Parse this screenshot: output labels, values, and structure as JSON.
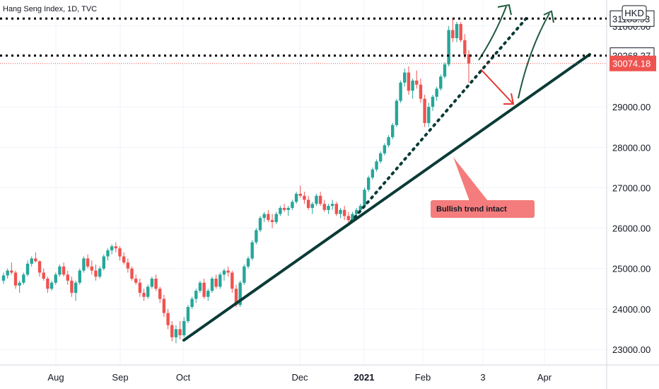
{
  "chart_data": {
    "type": "candlestick",
    "header": {
      "symbol": "Hang Seng Index, 1D, TVC"
    },
    "currency": "HKD",
    "y_axis": {
      "ticks": [
        "23000.00",
        "24000.00",
        "25000.00",
        "26000.00",
        "27000.00",
        "28000.00",
        "29000.00",
        "31000.00"
      ],
      "range": [
        22650,
        31300
      ]
    },
    "x_axis": {
      "labels": [
        {
          "text": "Aug",
          "bold": false
        },
        {
          "text": "Sep",
          "bold": false
        },
        {
          "text": "Oct",
          "bold": false
        },
        {
          "text": "Dec",
          "bold": false
        },
        {
          "text": "2021",
          "bold": true
        },
        {
          "text": "Feb",
          "bold": false
        },
        {
          "text": "3",
          "bold": false
        },
        {
          "text": "Apr",
          "bold": false
        }
      ]
    },
    "price_levels": [
      {
        "value": 31183.93,
        "label": "31183.93",
        "style": "dotted-black"
      },
      {
        "value": 30268.37,
        "label": "30268.37",
        "style": "dotted-black"
      },
      {
        "value": 30074.18,
        "label": "30074.18",
        "style": "current-price"
      }
    ],
    "annotation": {
      "text": "Bullish trend intact"
    },
    "candles": [
      [
        24700,
        24900,
        24620,
        24830
      ],
      [
        24830,
        25000,
        24750,
        24950
      ],
      [
        24950,
        25150,
        24850,
        24900
      ],
      [
        24900,
        24950,
        24500,
        24580
      ],
      [
        24580,
        24700,
        24400,
        24650
      ],
      [
        24650,
        24900,
        24600,
        24850
      ],
      [
        24850,
        25200,
        24800,
        25120
      ],
      [
        25120,
        25300,
        25050,
        25250
      ],
      [
        25250,
        25400,
        25150,
        25180
      ],
      [
        25180,
        25200,
        24800,
        24900
      ],
      [
        24900,
        25000,
        24700,
        24750
      ],
      [
        24750,
        24800,
        24400,
        24500
      ],
      [
        24500,
        24700,
        24450,
        24650
      ],
      [
        24650,
        24900,
        24600,
        24850
      ],
      [
        24850,
        25100,
        24800,
        25050
      ],
      [
        25050,
        25150,
        24800,
        24850
      ],
      [
        24850,
        24950,
        24600,
        24700
      ],
      [
        24700,
        24800,
        24300,
        24400
      ],
      [
        24400,
        24700,
        24200,
        24650
      ],
      [
        24650,
        25000,
        24600,
        24950
      ],
      [
        24950,
        25300,
        24900,
        25250
      ],
      [
        25250,
        25350,
        25000,
        25050
      ],
      [
        25050,
        25200,
        24850,
        24950
      ],
      [
        24950,
        25100,
        24700,
        24800
      ],
      [
        24800,
        25050,
        24750,
        25000
      ],
      [
        25000,
        25350,
        24950,
        25300
      ],
      [
        25300,
        25500,
        25200,
        25450
      ],
      [
        25450,
        25600,
        25350,
        25550
      ],
      [
        25550,
        25650,
        25400,
        25500
      ],
      [
        25500,
        25550,
        25200,
        25300
      ],
      [
        25300,
        25400,
        25100,
        25150
      ],
      [
        25150,
        25250,
        24900,
        25000
      ],
      [
        25000,
        25050,
        24700,
        24750
      ],
      [
        24750,
        24850,
        24600,
        24650
      ],
      [
        24650,
        24750,
        24300,
        24400
      ],
      [
        24400,
        24500,
        24200,
        24300
      ],
      [
        24300,
        24600,
        24250,
        24550
      ],
      [
        24550,
        24800,
        24500,
        24750
      ],
      [
        24750,
        24850,
        24450,
        24500
      ],
      [
        24500,
        24550,
        24150,
        24250
      ],
      [
        24250,
        24350,
        23800,
        23900
      ],
      [
        23900,
        24000,
        23500,
        23600
      ],
      [
        23600,
        23700,
        23200,
        23300
      ],
      [
        23300,
        23600,
        23150,
        23500
      ],
      [
        23500,
        23700,
        23250,
        23350
      ],
      [
        23350,
        23800,
        23300,
        23700
      ],
      [
        23700,
        24100,
        23650,
        24050
      ],
      [
        24050,
        24300,
        24000,
        24250
      ],
      [
        24250,
        24500,
        24150,
        24450
      ],
      [
        24450,
        24700,
        24400,
        24650
      ],
      [
        24650,
        24750,
        24250,
        24300
      ],
      [
        24300,
        24500,
        24200,
        24450
      ],
      [
        24450,
        24800,
        24400,
        24750
      ],
      [
        24750,
        24850,
        24500,
        24550
      ],
      [
        24550,
        24900,
        24500,
        24850
      ],
      [
        24850,
        25000,
        24700,
        24950
      ],
      [
        24950,
        25050,
        24800,
        24900
      ],
      [
        24900,
        24950,
        24400,
        24500
      ],
      [
        24500,
        24600,
        24050,
        24100
      ],
      [
        24100,
        24700,
        24050,
        24650
      ],
      [
        24650,
        25100,
        24600,
        25050
      ],
      [
        25050,
        25300,
        25000,
        25250
      ],
      [
        25250,
        25700,
        25200,
        25650
      ],
      [
        25650,
        26000,
        25600,
        25950
      ],
      [
        25950,
        26300,
        25900,
        26250
      ],
      [
        26250,
        26400,
        26150,
        26350
      ],
      [
        26350,
        26450,
        26150,
        26200
      ],
      [
        26200,
        26350,
        26000,
        26150
      ],
      [
        26150,
        26400,
        26100,
        26350
      ],
      [
        26350,
        26550,
        26300,
        26500
      ],
      [
        26500,
        26600,
        26400,
        26450
      ],
      [
        26450,
        26550,
        26300,
        26500
      ],
      [
        26500,
        26700,
        26450,
        26650
      ],
      [
        26650,
        26900,
        26600,
        26850
      ],
      [
        26850,
        27050,
        26750,
        26800
      ],
      [
        26800,
        26900,
        26600,
        26700
      ],
      [
        26700,
        26800,
        26450,
        26500
      ],
      [
        26500,
        26650,
        26350,
        26600
      ],
      [
        26600,
        26850,
        26550,
        26800
      ],
      [
        26800,
        26900,
        26550,
        26600
      ],
      [
        26600,
        26700,
        26400,
        26450
      ],
      [
        26450,
        26600,
        26350,
        26550
      ],
      [
        26550,
        26700,
        26450,
        26600
      ],
      [
        26600,
        26650,
        26300,
        26350
      ],
      [
        26350,
        26500,
        26250,
        26450
      ],
      [
        26450,
        26550,
        26200,
        26300
      ],
      [
        26300,
        26400,
        26100,
        26200
      ],
      [
        26200,
        26400,
        26150,
        26350
      ],
      [
        26350,
        26500,
        26250,
        26450
      ],
      [
        26450,
        26600,
        26400,
        26550
      ],
      [
        26550,
        27000,
        26500,
        26950
      ],
      [
        26950,
        27300,
        26900,
        27250
      ],
      [
        27250,
        27500,
        27200,
        27450
      ],
      [
        27450,
        27700,
        27400,
        27650
      ],
      [
        27650,
        27900,
        27600,
        27850
      ],
      [
        27850,
        28100,
        27800,
        28050
      ],
      [
        28050,
        28300,
        28000,
        28250
      ],
      [
        28250,
        28600,
        28200,
        28550
      ],
      [
        28550,
        29200,
        28500,
        29150
      ],
      [
        29150,
        29650,
        29100,
        29600
      ],
      [
        29600,
        29950,
        29500,
        29850
      ],
      [
        29850,
        30000,
        29300,
        29400
      ],
      [
        29400,
        29700,
        29200,
        29650
      ],
      [
        29650,
        29900,
        29450,
        29550
      ],
      [
        29550,
        29700,
        29100,
        29200
      ],
      [
        29200,
        29300,
        28500,
        28600
      ],
      [
        28600,
        29100,
        28500,
        29000
      ],
      [
        29000,
        29300,
        28900,
        29250
      ],
      [
        29250,
        29500,
        29150,
        29450
      ],
      [
        29450,
        29800,
        29400,
        29750
      ],
      [
        29750,
        30100,
        29700,
        30050
      ],
      [
        30050,
        31000,
        30000,
        30900
      ],
      [
        30900,
        31200,
        30600,
        30700
      ],
      [
        30700,
        31100,
        30600,
        31050
      ],
      [
        31050,
        31100,
        30600,
        30650
      ],
      [
        30650,
        30800,
        30200,
        30300
      ],
      [
        30300,
        30400,
        29600,
        30074
      ]
    ]
  }
}
